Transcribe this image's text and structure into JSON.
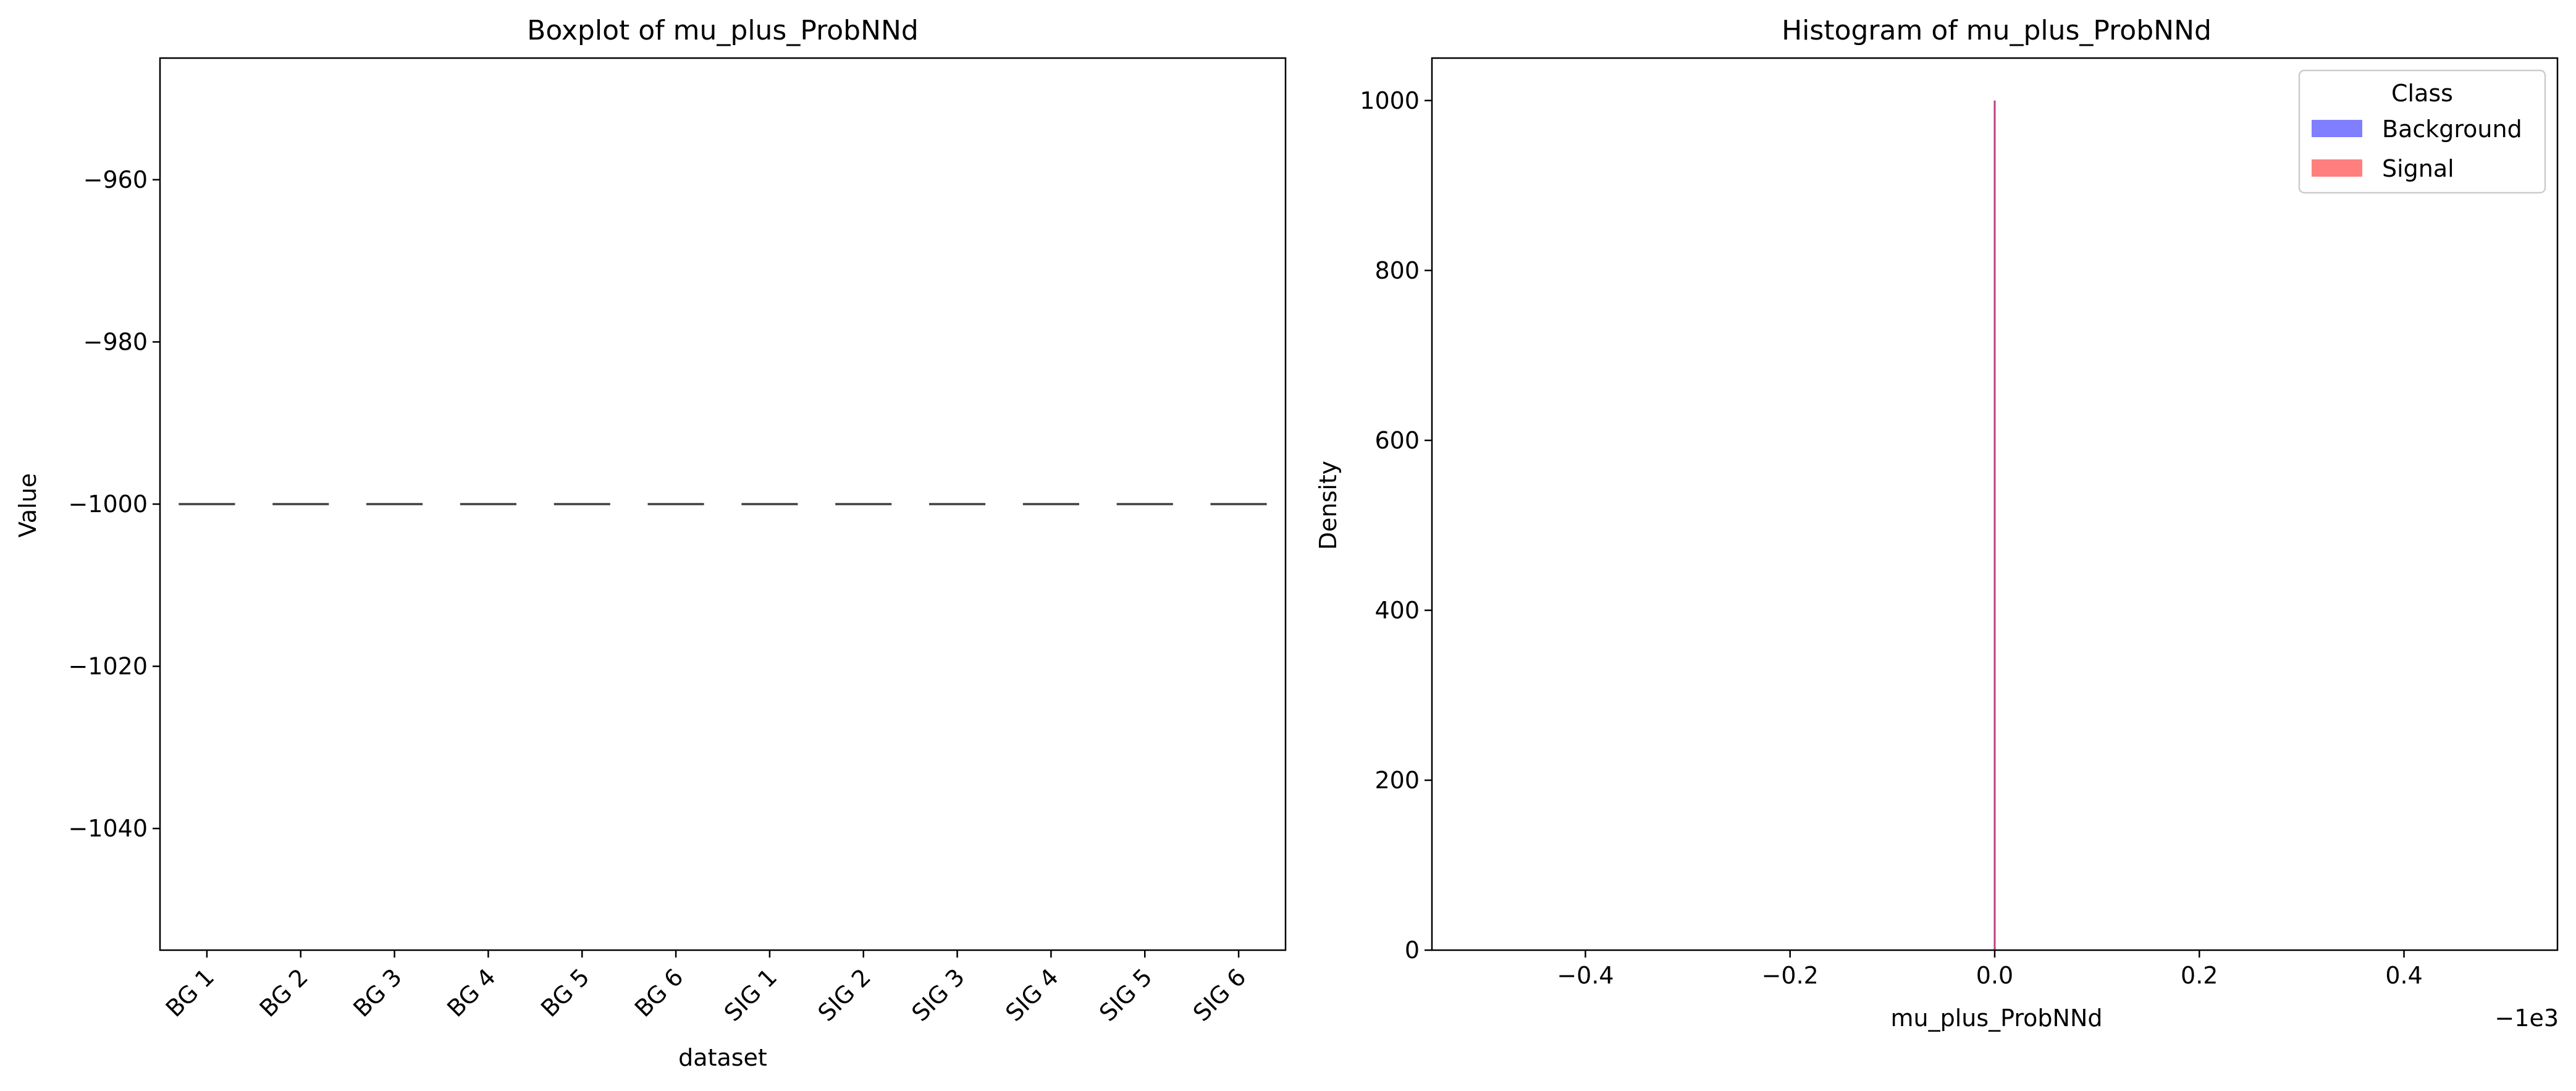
{
  "chart_data": [
    {
      "type": "boxplot",
      "title": "Boxplot of mu_plus_ProbNNd",
      "xlabel": "dataset",
      "ylabel": "Value",
      "categories": [
        "BG 1",
        "BG 2",
        "BG 3",
        "BG 4",
        "BG 5",
        "BG 6",
        "SIG 1",
        "SIG 2",
        "SIG 3",
        "SIG 4",
        "SIG 5",
        "SIG 6"
      ],
      "values": [
        -1000,
        -1000,
        -1000,
        -1000,
        -1000,
        -1000,
        -1000,
        -1000,
        -1000,
        -1000,
        -1000,
        -1000
      ],
      "ylim": [
        -1055,
        -945
      ],
      "yticks": [
        -1040,
        -1020,
        -1000,
        -980,
        -960
      ],
      "ytick_labels": [
        "−1040",
        "−1020",
        "−1000",
        "−980",
        "−960"
      ],
      "grid": false
    },
    {
      "type": "histogram",
      "title": "Histogram of mu_plus_ProbNNd",
      "xlabel": "mu_plus_ProbNNd",
      "ylabel": "Density",
      "offset_label": "−1e3",
      "xlim": [
        -0.55,
        0.55
      ],
      "ylim": [
        0,
        1050
      ],
      "xticks": [
        -0.4,
        -0.2,
        0.0,
        0.2,
        0.4
      ],
      "xtick_labels": [
        "−0.4",
        "−0.2",
        "0.0",
        "0.2",
        "0.4"
      ],
      "yticks": [
        0,
        200,
        400,
        600,
        800,
        1000
      ],
      "ytick_labels": [
        "0",
        "200",
        "400",
        "600",
        "800",
        "1000"
      ],
      "series": [
        {
          "name": "Background",
          "color": "#0000ff",
          "x": 0.0,
          "density": 1000
        },
        {
          "name": "Signal",
          "color": "#ff0000",
          "x": 0.0,
          "density": 1000
        }
      ],
      "legend": {
        "title": "Class",
        "placement": "top-right"
      },
      "grid": false
    }
  ]
}
